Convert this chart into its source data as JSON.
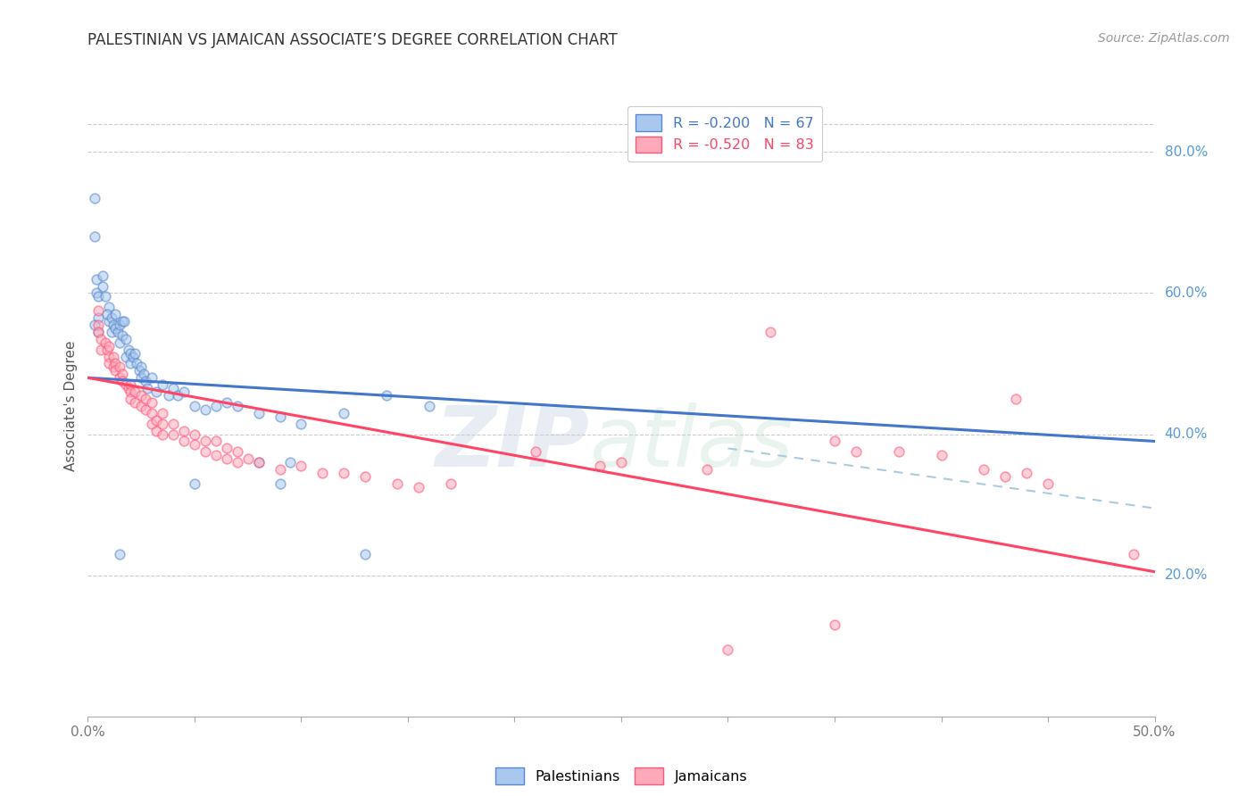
{
  "title": "PALESTINIAN VS JAMAICAN ASSOCIATE’S DEGREE CORRELATION CHART",
  "source": "Source: ZipAtlas.com",
  "ylabel": "Associate's Degree",
  "right_yticks": [
    20.0,
    40.0,
    60.0,
    80.0
  ],
  "xlim": [
    0.0,
    0.5
  ],
  "ylim": [
    0.0,
    0.88
  ],
  "watermark_zip": "ZIP",
  "watermark_atlas": "atlas",
  "blue_scatter": [
    [
      0.003,
      0.735
    ],
    [
      0.003,
      0.68
    ],
    [
      0.004,
      0.62
    ],
    [
      0.004,
      0.6
    ],
    [
      0.005,
      0.565
    ],
    [
      0.005,
      0.545
    ],
    [
      0.003,
      0.555
    ],
    [
      0.005,
      0.595
    ],
    [
      0.007,
      0.625
    ],
    [
      0.007,
      0.61
    ],
    [
      0.008,
      0.595
    ],
    [
      0.01,
      0.58
    ],
    [
      0.01,
      0.56
    ],
    [
      0.009,
      0.57
    ],
    [
      0.011,
      0.565
    ],
    [
      0.011,
      0.545
    ],
    [
      0.012,
      0.555
    ],
    [
      0.013,
      0.57
    ],
    [
      0.013,
      0.55
    ],
    [
      0.014,
      0.545
    ],
    [
      0.015,
      0.555
    ],
    [
      0.015,
      0.53
    ],
    [
      0.016,
      0.56
    ],
    [
      0.016,
      0.54
    ],
    [
      0.017,
      0.56
    ],
    [
      0.018,
      0.535
    ],
    [
      0.018,
      0.51
    ],
    [
      0.019,
      0.52
    ],
    [
      0.02,
      0.515
    ],
    [
      0.02,
      0.5
    ],
    [
      0.021,
      0.51
    ],
    [
      0.022,
      0.515
    ],
    [
      0.023,
      0.5
    ],
    [
      0.024,
      0.49
    ],
    [
      0.025,
      0.495
    ],
    [
      0.025,
      0.48
    ],
    [
      0.026,
      0.485
    ],
    [
      0.027,
      0.475
    ],
    [
      0.028,
      0.465
    ],
    [
      0.03,
      0.48
    ],
    [
      0.032,
      0.46
    ],
    [
      0.035,
      0.47
    ],
    [
      0.038,
      0.455
    ],
    [
      0.04,
      0.465
    ],
    [
      0.042,
      0.455
    ],
    [
      0.045,
      0.46
    ],
    [
      0.05,
      0.44
    ],
    [
      0.055,
      0.435
    ],
    [
      0.06,
      0.44
    ],
    [
      0.065,
      0.445
    ],
    [
      0.07,
      0.44
    ],
    [
      0.08,
      0.43
    ],
    [
      0.09,
      0.425
    ],
    [
      0.1,
      0.415
    ],
    [
      0.12,
      0.43
    ],
    [
      0.14,
      0.455
    ],
    [
      0.16,
      0.44
    ],
    [
      0.08,
      0.36
    ],
    [
      0.095,
      0.36
    ],
    [
      0.015,
      0.23
    ],
    [
      0.13,
      0.23
    ],
    [
      0.05,
      0.33
    ],
    [
      0.09,
      0.33
    ]
  ],
  "pink_scatter": [
    [
      0.005,
      0.575
    ],
    [
      0.005,
      0.555
    ],
    [
      0.005,
      0.545
    ],
    [
      0.006,
      0.535
    ],
    [
      0.006,
      0.52
    ],
    [
      0.008,
      0.53
    ],
    [
      0.009,
      0.52
    ],
    [
      0.01,
      0.525
    ],
    [
      0.01,
      0.51
    ],
    [
      0.01,
      0.5
    ],
    [
      0.012,
      0.51
    ],
    [
      0.012,
      0.495
    ],
    [
      0.013,
      0.5
    ],
    [
      0.013,
      0.49
    ],
    [
      0.015,
      0.495
    ],
    [
      0.015,
      0.48
    ],
    [
      0.016,
      0.485
    ],
    [
      0.016,
      0.475
    ],
    [
      0.018,
      0.47
    ],
    [
      0.019,
      0.465
    ],
    [
      0.02,
      0.47
    ],
    [
      0.02,
      0.46
    ],
    [
      0.02,
      0.45
    ],
    [
      0.022,
      0.46
    ],
    [
      0.022,
      0.445
    ],
    [
      0.025,
      0.455
    ],
    [
      0.025,
      0.44
    ],
    [
      0.027,
      0.45
    ],
    [
      0.027,
      0.435
    ],
    [
      0.03,
      0.445
    ],
    [
      0.03,
      0.43
    ],
    [
      0.03,
      0.415
    ],
    [
      0.032,
      0.42
    ],
    [
      0.032,
      0.405
    ],
    [
      0.035,
      0.43
    ],
    [
      0.035,
      0.415
    ],
    [
      0.035,
      0.4
    ],
    [
      0.04,
      0.415
    ],
    [
      0.04,
      0.4
    ],
    [
      0.045,
      0.405
    ],
    [
      0.045,
      0.39
    ],
    [
      0.05,
      0.4
    ],
    [
      0.05,
      0.385
    ],
    [
      0.055,
      0.39
    ],
    [
      0.055,
      0.375
    ],
    [
      0.06,
      0.39
    ],
    [
      0.06,
      0.37
    ],
    [
      0.065,
      0.38
    ],
    [
      0.065,
      0.365
    ],
    [
      0.07,
      0.375
    ],
    [
      0.07,
      0.36
    ],
    [
      0.075,
      0.365
    ],
    [
      0.08,
      0.36
    ],
    [
      0.09,
      0.35
    ],
    [
      0.1,
      0.355
    ],
    [
      0.11,
      0.345
    ],
    [
      0.12,
      0.345
    ],
    [
      0.13,
      0.34
    ],
    [
      0.145,
      0.33
    ],
    [
      0.155,
      0.325
    ],
    [
      0.17,
      0.33
    ],
    [
      0.21,
      0.375
    ],
    [
      0.24,
      0.355
    ],
    [
      0.25,
      0.36
    ],
    [
      0.29,
      0.35
    ],
    [
      0.32,
      0.545
    ],
    [
      0.35,
      0.39
    ],
    [
      0.36,
      0.375
    ],
    [
      0.38,
      0.375
    ],
    [
      0.4,
      0.37
    ],
    [
      0.42,
      0.35
    ],
    [
      0.43,
      0.34
    ],
    [
      0.44,
      0.345
    ],
    [
      0.45,
      0.33
    ],
    [
      0.435,
      0.45
    ],
    [
      0.35,
      0.13
    ],
    [
      0.49,
      0.23
    ],
    [
      0.3,
      0.095
    ]
  ],
  "blue_line": [
    [
      0.0,
      0.48
    ],
    [
      0.5,
      0.39
    ]
  ],
  "pink_line": [
    [
      0.0,
      0.48
    ],
    [
      0.5,
      0.205
    ]
  ],
  "dash_line": [
    [
      0.3,
      0.38
    ],
    [
      0.5,
      0.295
    ]
  ],
  "scatter_size": 60,
  "scatter_alpha": 0.55,
  "blue_edge_color": "#5588CC",
  "blue_face_color": "#AAC8EE",
  "pink_edge_color": "#FF5577",
  "pink_face_color": "#FFAABB",
  "line_blue_color": "#4477CC",
  "line_pink_color": "#FF4466",
  "dash_color": "#AACCDD",
  "grid_color": "#CCCCCC",
  "right_tick_color": "#5599DD",
  "title_color": "#333333",
  "source_color": "#999999",
  "ylabel_color": "#555555",
  "xtick_color": "#777777",
  "legend1_label": "R = -0.200   N = 67",
  "legend2_label": "R = -0.520   N = 83",
  "bottom_legend1": "Palestinians",
  "bottom_legend2": "Jamaicans"
}
